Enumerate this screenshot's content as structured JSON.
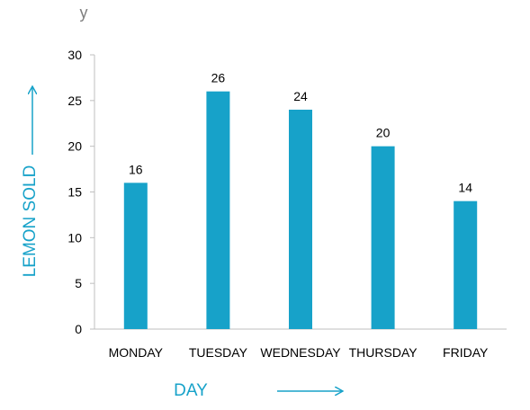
{
  "chart_data": {
    "type": "bar",
    "categories": [
      "MONDAY",
      "TUESDAY",
      "WEDNESDAY",
      "THURSDAY",
      "FRIDAY"
    ],
    "values": [
      16,
      26,
      24,
      20,
      14
    ],
    "data_labels": [
      "16",
      "26",
      "24",
      "20",
      "14"
    ],
    "title": "",
    "xlabel": "DAY",
    "ylabel": "LEMON SOLD",
    "y_variable": "y",
    "ylim": [
      0,
      30
    ],
    "yticks": [
      0,
      5,
      10,
      15,
      20,
      25,
      30
    ],
    "ytick_labels": [
      "0",
      "5",
      "10",
      "15",
      "20",
      "25",
      "30"
    ],
    "grid": false,
    "legend": "none",
    "colors": {
      "bar": "#17a2c9",
      "axis_label": "#17a2c9",
      "axis_line": "#bfbfbf"
    }
  }
}
